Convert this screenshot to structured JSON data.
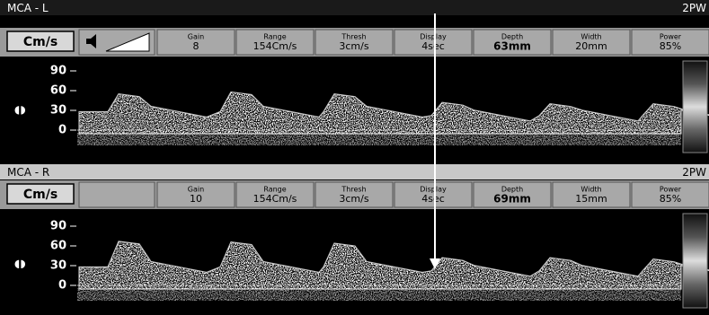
{
  "panels": [
    {
      "title": "MCA - L",
      "mode": "2PW",
      "unit_button": "Cm/s",
      "params": [
        {
          "label": "Gain",
          "value": "8"
        },
        {
          "label": "Range",
          "value": "154Cm/s"
        },
        {
          "label": "Thresh",
          "value": "3cm/s"
        },
        {
          "label": "Display",
          "value": "4sec"
        },
        {
          "label": "Depth",
          "value": "63mm"
        },
        {
          "label": "Width",
          "value": "20mm"
        },
        {
          "label": "Power",
          "value": "85%"
        }
      ],
      "scale": [
        "90",
        "60",
        "30",
        "0"
      ]
    },
    {
      "title": "MCA - R",
      "mode": "2PW",
      "unit_button": "Cm/s",
      "params": [
        {
          "label": "Gain",
          "value": "10"
        },
        {
          "label": "Range",
          "value": "154Cm/s"
        },
        {
          "label": "Thresh",
          "value": "3cm/s"
        },
        {
          "label": "Display",
          "value": "4sec"
        },
        {
          "label": "Depth",
          "value": "69mm"
        },
        {
          "label": "Width",
          "value": "15mm"
        },
        {
          "label": "Power",
          "value": "85%"
        }
      ],
      "scale": [
        "90",
        "60",
        "30",
        "0"
      ]
    }
  ]
}
